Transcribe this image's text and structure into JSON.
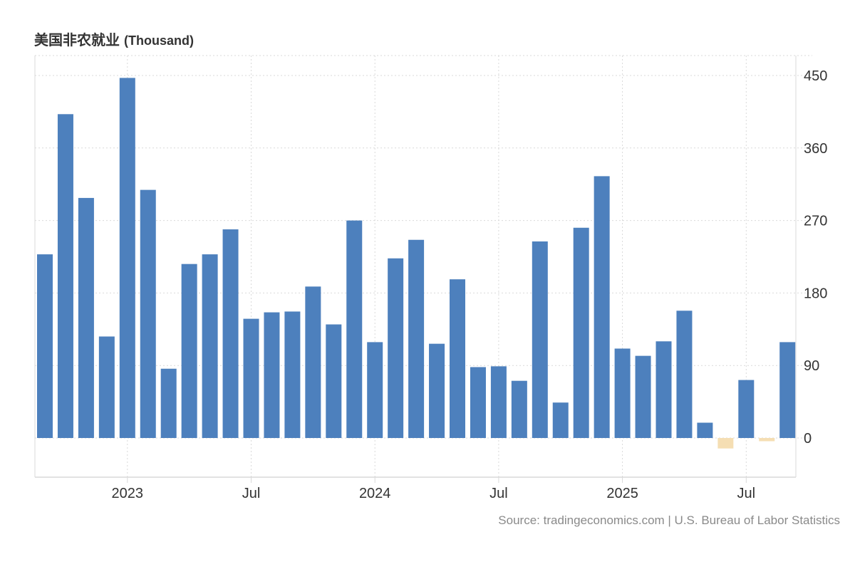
{
  "title": "美国非农就业",
  "unit": "(Thousand)",
  "source": "Source: tradingeconomics.com | U.S. Bureau of Labor Statistics",
  "chart_data": {
    "type": "bar",
    "title": "美国非农就业",
    "ylabel": "Thousand",
    "xlabel": "",
    "ylim": [
      -45,
      475
    ],
    "yticks": [
      0,
      90,
      180,
      270,
      360,
      450
    ],
    "grid": true,
    "y_axis_position": "right",
    "categories": [
      "2022-09",
      "2022-10",
      "2022-11",
      "2022-12",
      "2023-01",
      "2023-02",
      "2023-03",
      "2023-04",
      "2023-05",
      "2023-06",
      "2023-07",
      "2023-08",
      "2023-09",
      "2023-10",
      "2023-11",
      "2023-12",
      "2024-01",
      "2024-02",
      "2024-03",
      "2024-04",
      "2024-05",
      "2024-06",
      "2024-07",
      "2024-08",
      "2024-09",
      "2024-10",
      "2024-11",
      "2024-12",
      "2025-01",
      "2025-02",
      "2025-03",
      "2025-04",
      "2025-05",
      "2025-06",
      "2025-07",
      "2025-08",
      "2025-09"
    ],
    "values": [
      228,
      402,
      298,
      126,
      447,
      308,
      86,
      216,
      228,
      259,
      148,
      156,
      157,
      188,
      141,
      270,
      119,
      223,
      246,
      117,
      197,
      88,
      89,
      71,
      244,
      44,
      261,
      325,
      111,
      102,
      120,
      158,
      19,
      -13,
      72,
      -4,
      119
    ],
    "x_tick_labels": [
      {
        "label": "2023",
        "at": "2023-01"
      },
      {
        "label": "Jul",
        "at": "2023-07"
      },
      {
        "label": "2024",
        "at": "2024-01"
      },
      {
        "label": "Jul",
        "at": "2024-07"
      },
      {
        "label": "2025",
        "at": "2025-01"
      },
      {
        "label": "Jul",
        "at": "2025-07"
      }
    ],
    "colors": {
      "positive": "#4d80bd",
      "negative": "#f5deb3",
      "grid": "#d9d9d9",
      "axis": "#d9d9d9",
      "text": "#333333",
      "source": "#8a8a8a"
    }
  }
}
